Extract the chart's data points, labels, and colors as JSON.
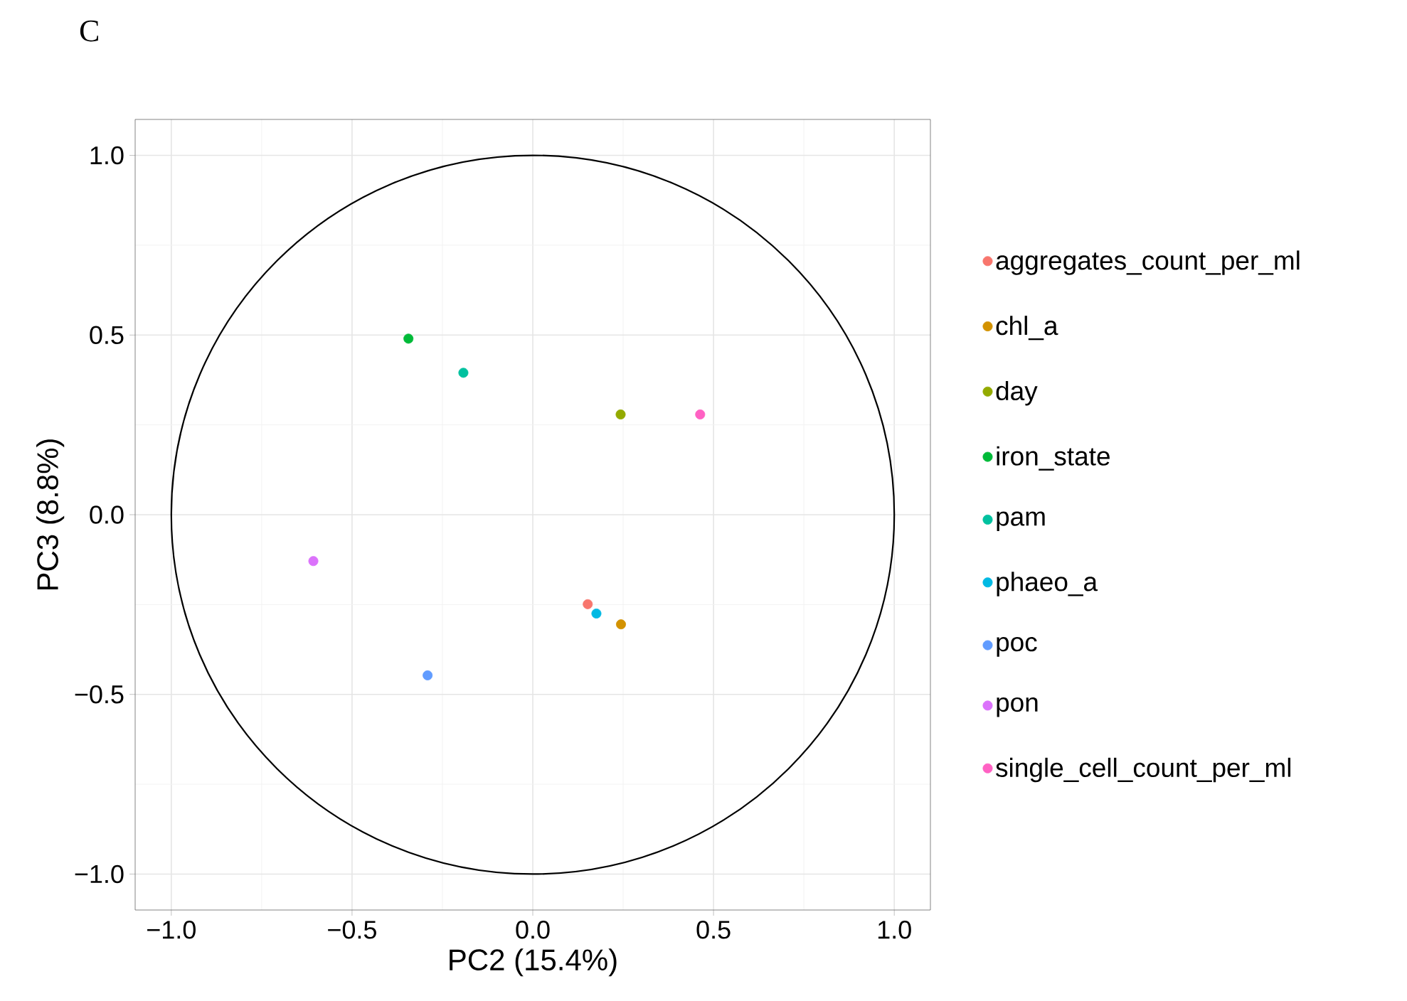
{
  "chart_data": {
    "type": "scatter",
    "title": "C",
    "xlabel": "PC2 (15.4%)",
    "ylabel": "PC3 (8.8%)",
    "xlim": [
      -1.1,
      1.1
    ],
    "ylim": [
      -1.1,
      1.1
    ],
    "xticks": [
      {
        "value": -1.0,
        "label": "−1.0"
      },
      {
        "value": -0.5,
        "label": "−0.5"
      },
      {
        "value": 0.0,
        "label": "0.0"
      },
      {
        "value": 0.5,
        "label": "0.5"
      },
      {
        "value": 1.0,
        "label": "1.0"
      }
    ],
    "yticks": [
      {
        "value": -1.0,
        "label": "−1.0"
      },
      {
        "value": -0.5,
        "label": "−0.5"
      },
      {
        "value": 0.0,
        "label": "0.0"
      },
      {
        "value": 0.5,
        "label": "0.5"
      },
      {
        "value": 1.0,
        "label": "1.0"
      }
    ],
    "grid": true,
    "legend": "right",
    "series": [
      {
        "name": "aggregates_count_per_ml",
        "color": "#f8766d",
        "x": [
          0.152
        ],
        "values": [
          -0.249
        ]
      },
      {
        "name": "chl_a",
        "color": "#d39200",
        "x": [
          0.244
        ],
        "values": [
          -0.305
        ]
      },
      {
        "name": "day",
        "color": "#93aa00",
        "x": [
          0.243
        ],
        "values": [
          0.279
        ]
      },
      {
        "name": "iron_state",
        "color": "#00ba38",
        "x": [
          -0.344
        ],
        "values": [
          0.49
        ]
      },
      {
        "name": "pam",
        "color": "#00c19f",
        "x": [
          -0.192
        ],
        "values": [
          0.395
        ]
      },
      {
        "name": "phaeo_a",
        "color": "#00b9e3",
        "x": [
          0.176
        ],
        "values": [
          -0.275
        ]
      },
      {
        "name": "poc",
        "color": "#619cff",
        "x": [
          -0.291
        ],
        "values": [
          -0.447
        ]
      },
      {
        "name": "pon",
        "color": "#db72fb",
        "x": [
          -0.607
        ],
        "values": [
          -0.129
        ]
      },
      {
        "name": "single_cell_count_per_ml",
        "color": "#ff61c3",
        "x": [
          0.463
        ],
        "values": [
          0.279
        ]
      }
    ]
  }
}
